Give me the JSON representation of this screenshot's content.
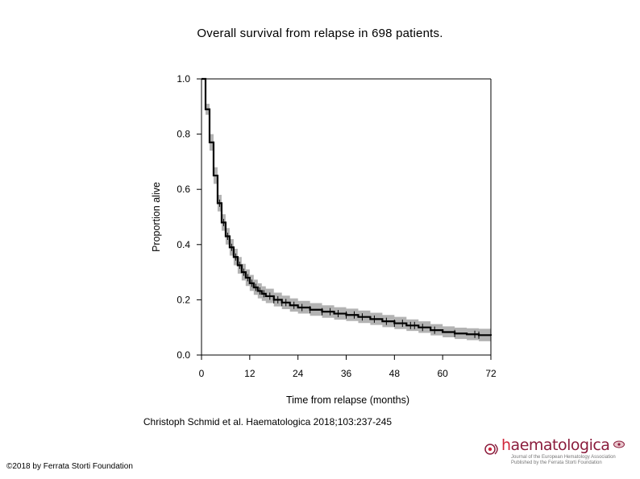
{
  "slide": {
    "title": "Overall survival from relapse in 698 patients.",
    "citation": "Christoph Schmid et al. Haematologica 2018;103:237-245",
    "copyright": "©2018 by Ferrata Storti Foundation"
  },
  "logo": {
    "wordmark_h": "h",
    "wordmark_rest": "aematologica",
    "subtitle_line1": "Journal of the European Hematology Association",
    "subtitle_line2": "Published by the Ferrata Storti Foundation",
    "icon": "cell-icon"
  },
  "colors": {
    "curve": "#000000",
    "confidence_band": "#b3b3b3",
    "axis": "#000000",
    "logo": "#8a1c3c"
  },
  "chart_data": {
    "type": "line",
    "title": "",
    "xlabel": "Time from relapse (months)",
    "ylabel": "Proportion alive",
    "xlim": [
      0,
      72
    ],
    "ylim": [
      0,
      1
    ],
    "x_ticks": [
      0,
      12,
      24,
      36,
      48,
      60,
      72
    ],
    "y_ticks": [
      0.0,
      0.2,
      0.4,
      0.6,
      0.8,
      1.0
    ],
    "x_tick_labels": [
      "0",
      "12",
      "24",
      "36",
      "48",
      "60",
      "72"
    ],
    "y_tick_labels": [
      "0.0",
      "0.2",
      "0.4",
      "0.6",
      "0.8",
      "1.0"
    ],
    "grid": false,
    "series": [
      {
        "name": "Overall survival",
        "style": "step",
        "x": [
          0,
          1,
          2,
          3,
          4,
          5,
          6,
          7,
          8,
          9,
          10,
          11,
          12,
          13,
          14,
          15,
          16,
          18,
          20,
          22,
          24,
          27,
          30,
          33,
          36,
          39,
          42,
          45,
          48,
          51,
          54,
          57,
          60,
          63,
          66,
          69,
          72
        ],
        "survival": [
          1.0,
          0.89,
          0.77,
          0.65,
          0.55,
          0.48,
          0.43,
          0.39,
          0.355,
          0.325,
          0.3,
          0.28,
          0.26,
          0.245,
          0.232,
          0.222,
          0.213,
          0.2,
          0.19,
          0.18,
          0.172,
          0.164,
          0.157,
          0.15,
          0.145,
          0.138,
          0.13,
          0.122,
          0.115,
          0.107,
          0.1,
          0.09,
          0.083,
          0.078,
          0.075,
          0.072,
          0.07
        ],
        "ci_lower": [
          1.0,
          0.87,
          0.74,
          0.62,
          0.52,
          0.45,
          0.4,
          0.36,
          0.325,
          0.295,
          0.27,
          0.25,
          0.232,
          0.218,
          0.205,
          0.196,
          0.188,
          0.176,
          0.166,
          0.157,
          0.15,
          0.142,
          0.135,
          0.128,
          0.123,
          0.116,
          0.109,
          0.101,
          0.094,
          0.087,
          0.08,
          0.071,
          0.064,
          0.058,
          0.054,
          0.05,
          0.048
        ],
        "ci_upper": [
          1.0,
          0.91,
          0.8,
          0.68,
          0.58,
          0.51,
          0.46,
          0.42,
          0.385,
          0.355,
          0.33,
          0.31,
          0.29,
          0.273,
          0.26,
          0.249,
          0.24,
          0.226,
          0.215,
          0.205,
          0.196,
          0.188,
          0.18,
          0.173,
          0.168,
          0.161,
          0.153,
          0.145,
          0.138,
          0.129,
          0.122,
          0.112,
          0.104,
          0.099,
          0.097,
          0.095,
          0.093
        ],
        "censor_times": [
          4.5,
          5.5,
          6.5,
          7.5,
          8.5,
          9.5,
          10.5,
          11.5,
          12.5,
          13.5,
          14.5,
          15.5,
          17,
          18,
          19,
          20,
          21,
          23,
          25,
          27,
          30,
          32,
          34,
          36,
          38,
          40,
          43,
          46,
          48,
          50,
          52,
          53,
          55,
          58,
          63,
          68,
          69
        ]
      }
    ]
  }
}
